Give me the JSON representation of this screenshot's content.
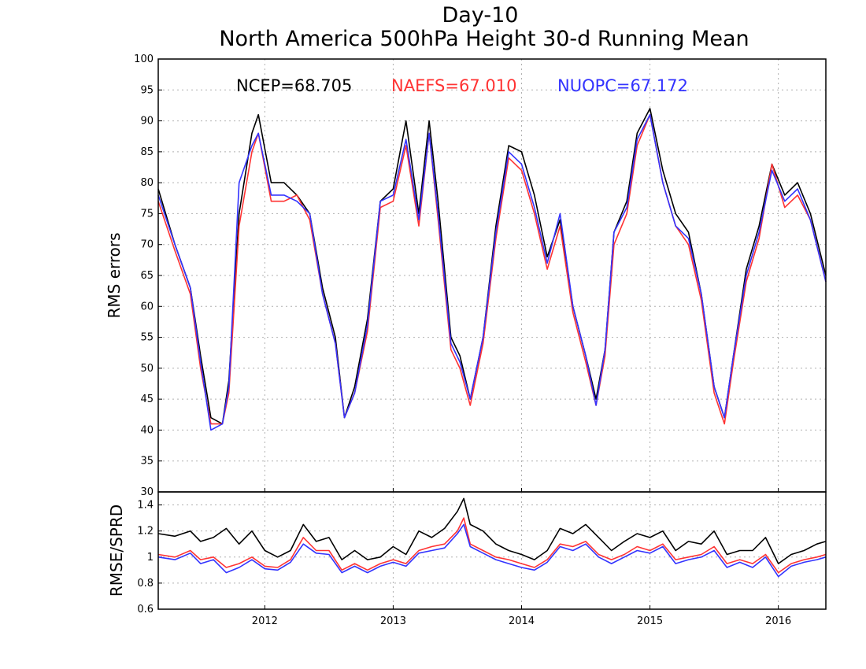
{
  "chart_data": {
    "type": "line",
    "title": "Day-10",
    "subtitle": "North America 500hPa Height 30-d Running Mean",
    "x_tick_labels": [
      "2012",
      "2013",
      "2014",
      "2015",
      "2016"
    ],
    "colors": {
      "NCEP": "#000000",
      "NAEFS": "#ff3333",
      "NUOPC": "#3333ff"
    },
    "panels": [
      {
        "ylabel": "RMS errors",
        "ylim": [
          30,
          100
        ],
        "yticks": [
          30,
          35,
          40,
          45,
          50,
          55,
          60,
          65,
          70,
          75,
          80,
          85,
          90,
          95,
          100
        ],
        "grid": true,
        "legend": [
          {
            "text": "NCEP=68.705",
            "color": "#000000"
          },
          {
            "text": "NAEFS=67.010",
            "color": "#ff3333"
          },
          {
            "text": "NUOPC=67.172",
            "color": "#3333ff"
          }
        ],
        "x": [
          2011.17,
          2011.3,
          2011.42,
          2011.5,
          2011.58,
          2011.67,
          2011.72,
          2011.8,
          2011.9,
          2011.95,
          2012.05,
          2012.15,
          2012.25,
          2012.35,
          2012.45,
          2012.55,
          2012.62,
          2012.7,
          2012.8,
          2012.9,
          2013.0,
          2013.1,
          2013.2,
          2013.28,
          2013.35,
          2013.45,
          2013.52,
          2013.6,
          2013.7,
          2013.8,
          2013.9,
          2014.0,
          2014.1,
          2014.2,
          2014.3,
          2014.4,
          2014.5,
          2014.58,
          2014.65,
          2014.72,
          2014.82,
          2014.9,
          2015.0,
          2015.1,
          2015.2,
          2015.3,
          2015.4,
          2015.5,
          2015.58,
          2015.65,
          2015.75,
          2015.85,
          2015.95,
          2016.05,
          2016.15,
          2016.25,
          2016.37
        ],
        "series": [
          {
            "name": "NCEP",
            "values": [
              79,
              70,
              63,
              52,
              42,
              41,
              48,
              75,
              88,
              91,
              80,
              80,
              78,
              75,
              63,
              55,
              42,
              47,
              58,
              77,
              79,
              90,
              75,
              90,
              77,
              55,
              52,
              45,
              55,
              73,
              86,
              85,
              78,
              68,
              74,
              60,
              52,
              45,
              53,
              72,
              77,
              88,
              92,
              82,
              75,
              72,
              62,
              47,
              42,
              52,
              66,
              73,
              83,
              78,
              80,
              75,
              65
            ]
          },
          {
            "name": "NAEFS",
            "values": [
              77,
              69,
              62,
              50,
              41,
              41,
              46,
              73,
              85,
              88,
              77,
              77,
              78,
              74,
              62,
              54,
              42,
              46,
              56,
              76,
              77,
              86,
              73,
              88,
              74,
              53,
              50,
              44,
              54,
              71,
              84,
              82,
              75,
              66,
              73,
              59,
              51,
              44,
              52,
              70,
              75,
              86,
              91,
              80,
              73,
              70,
              61,
              46,
              41,
              51,
              64,
              71,
              83,
              76,
              78,
              74,
              64
            ]
          },
          {
            "name": "NUOPC",
            "values": [
              78,
              70,
              63,
              51,
              40,
              41,
              47,
              80,
              86,
              88,
              78,
              78,
              77,
              75,
              62,
              54,
              42,
              46,
              57,
              77,
              78,
              87,
              74,
              88,
              75,
              54,
              51,
              45,
              55,
              72,
              85,
              83,
              76,
              67,
              75,
              60,
              52,
              44,
              53,
              72,
              76,
              87,
              91,
              80,
              73,
              71,
              62,
              47,
              42,
              52,
              65,
              72,
              82,
              77,
              79,
              74,
              64
            ]
          }
        ]
      },
      {
        "ylabel": "RMSE/SPRD",
        "ylim": [
          0.6,
          1.5
        ],
        "yticks": [
          0.6,
          0.8,
          1.0,
          1.2,
          1.4
        ],
        "ytick_labels": [
          "0.6",
          "0.8",
          "1",
          "1.2",
          "1.4"
        ],
        "grid": true,
        "x": [
          2011.17,
          2011.3,
          2011.42,
          2011.5,
          2011.6,
          2011.7,
          2011.8,
          2011.9,
          2012.0,
          2012.1,
          2012.2,
          2012.3,
          2012.4,
          2012.5,
          2012.6,
          2012.7,
          2012.8,
          2012.9,
          2013.0,
          2013.1,
          2013.2,
          2013.3,
          2013.4,
          2013.5,
          2013.55,
          2013.6,
          2013.7,
          2013.8,
          2013.9,
          2014.0,
          2014.1,
          2014.2,
          2014.3,
          2014.4,
          2014.5,
          2014.6,
          2014.7,
          2014.8,
          2014.9,
          2015.0,
          2015.1,
          2015.2,
          2015.3,
          2015.4,
          2015.5,
          2015.6,
          2015.7,
          2015.8,
          2015.9,
          2016.0,
          2016.1,
          2016.2,
          2016.3,
          2016.37
        ],
        "series": [
          {
            "name": "NCEP",
            "values": [
              1.18,
              1.16,
              1.2,
              1.12,
              1.15,
              1.22,
              1.1,
              1.2,
              1.05,
              1.0,
              1.05,
              1.25,
              1.12,
              1.15,
              0.98,
              1.05,
              0.98,
              1.0,
              1.08,
              1.02,
              1.2,
              1.15,
              1.22,
              1.35,
              1.45,
              1.25,
              1.2,
              1.1,
              1.05,
              1.02,
              0.98,
              1.05,
              1.22,
              1.18,
              1.25,
              1.15,
              1.05,
              1.12,
              1.18,
              1.15,
              1.2,
              1.05,
              1.12,
              1.1,
              1.2,
              1.02,
              1.05,
              1.05,
              1.15,
              0.95,
              1.02,
              1.05,
              1.1,
              1.12
            ]
          },
          {
            "name": "NAEFS",
            "values": [
              1.02,
              1.0,
              1.05,
              0.98,
              1.0,
              0.92,
              0.95,
              1.0,
              0.93,
              0.92,
              0.98,
              1.15,
              1.05,
              1.05,
              0.9,
              0.95,
              0.9,
              0.95,
              0.98,
              0.95,
              1.05,
              1.08,
              1.1,
              1.2,
              1.3,
              1.1,
              1.05,
              1.0,
              0.98,
              0.95,
              0.92,
              0.98,
              1.1,
              1.08,
              1.12,
              1.02,
              0.98,
              1.02,
              1.08,
              1.05,
              1.1,
              0.98,
              1.0,
              1.02,
              1.08,
              0.95,
              0.98,
              0.95,
              1.02,
              0.88,
              0.95,
              0.98,
              1.0,
              1.02
            ]
          },
          {
            "name": "NUOPC",
            "values": [
              1.0,
              0.98,
              1.03,
              0.95,
              0.98,
              0.88,
              0.92,
              0.98,
              0.91,
              0.9,
              0.96,
              1.1,
              1.03,
              1.02,
              0.88,
              0.93,
              0.88,
              0.93,
              0.96,
              0.93,
              1.03,
              1.05,
              1.07,
              1.18,
              1.25,
              1.08,
              1.03,
              0.98,
              0.95,
              0.92,
              0.9,
              0.96,
              1.08,
              1.05,
              1.1,
              1.0,
              0.95,
              1.0,
              1.05,
              1.03,
              1.08,
              0.95,
              0.98,
              1.0,
              1.05,
              0.92,
              0.96,
              0.92,
              1.0,
              0.85,
              0.93,
              0.96,
              0.98,
              1.0
            ]
          }
        ]
      }
    ]
  }
}
